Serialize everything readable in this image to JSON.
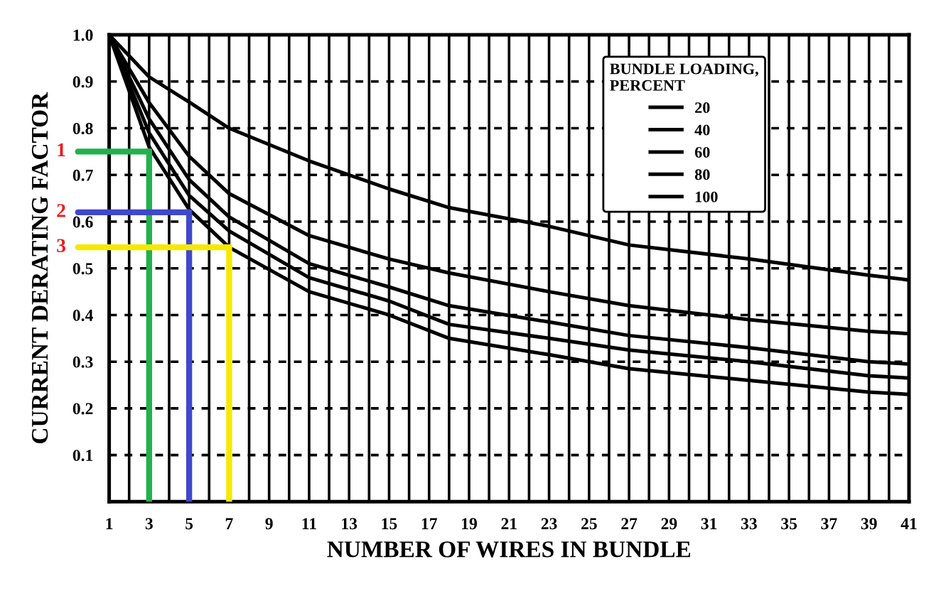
{
  "chart_data": {
    "type": "line",
    "xlabel": "NUMBER OF WIRES IN BUNDLE",
    "ylabel": "CURRENT DERATING FACTOR",
    "legend_title": "BUNDLE LOADING,\nPERCENT",
    "legend": "top right",
    "grid": true,
    "marker": "none",
    "line_style": "solid",
    "xlim": [
      1,
      41
    ],
    "ylim": [
      0,
      1
    ],
    "xticks": [
      1,
      {
        "value": 2,
        "label": null
      },
      3,
      {
        "value": 4,
        "label": null
      },
      5,
      {
        "value": 6,
        "label": null
      },
      7,
      {
        "value": 8,
        "label": null
      },
      9,
      {
        "value": 10,
        "label": null
      },
      11,
      {
        "value": 12,
        "label": null
      },
      13,
      {
        "value": 14,
        "label": null
      },
      15,
      {
        "value": 16,
        "label": null
      },
      17,
      {
        "value": 18,
        "label": null
      },
      19,
      {
        "value": 20,
        "label": null
      },
      21,
      {
        "value": 22,
        "label": null
      },
      23,
      {
        "value": 24,
        "label": null
      },
      25,
      {
        "value": 26,
        "label": null
      },
      27,
      {
        "value": 28,
        "label": null
      },
      29,
      {
        "value": 30,
        "label": null
      },
      31,
      {
        "value": 32,
        "label": null
      },
      33,
      {
        "value": 34,
        "label": null
      },
      35,
      {
        "value": 36,
        "label": null
      },
      37,
      {
        "value": 38,
        "label": null
      },
      39,
      {
        "value": 40,
        "label": null
      },
      41
    ],
    "yticks": [
      0.1,
      0.2,
      0.3,
      0.4,
      0.5,
      0.6,
      0.7,
      0.8,
      0.9,
      {
        "value": 1,
        "label": "1.0"
      }
    ],
    "x": [
      1,
      3,
      5,
      7,
      11,
      15,
      18,
      23,
      27,
      33,
      39,
      41
    ],
    "series": [
      {
        "name": "20",
        "color": "#000000",
        "values": [
          1.0,
          0.91,
          0.856,
          0.8,
          0.73,
          0.67,
          0.63,
          0.59,
          0.55,
          0.52,
          0.485,
          0.475
        ]
      },
      {
        "name": "40",
        "color": "#000000",
        "values": [
          1.0,
          0.855,
          0.74,
          0.66,
          0.57,
          0.52,
          0.49,
          0.45,
          0.42,
          0.39,
          0.365,
          0.36
        ]
      },
      {
        "name": "60",
        "color": "#000000",
        "values": [
          1.0,
          0.82,
          0.69,
          0.61,
          0.51,
          0.46,
          0.42,
          0.385,
          0.356,
          0.33,
          0.3,
          0.295
        ]
      },
      {
        "name": "80",
        "color": "#000000",
        "values": [
          1.0,
          0.79,
          0.656,
          0.58,
          0.48,
          0.43,
          0.38,
          0.35,
          0.325,
          0.3,
          0.27,
          0.265
        ]
      },
      {
        "name": "100",
        "color": "#000000",
        "values": [
          1.0,
          0.76,
          0.626,
          0.545,
          0.45,
          0.4,
          0.35,
          0.315,
          0.285,
          0.26,
          0.235,
          0.23
        ]
      },
      {
        "type": "line",
        "color": "#22b14c",
        "x": [
          3,
          3
        ],
        "values": [
          0.75,
          0
        ]
      },
      {
        "type": "line",
        "color": "#3f48cc",
        "x": [
          5,
          5
        ],
        "values": [
          0.62,
          0
        ]
      },
      {
        "type": "line",
        "color": "#f5e900",
        "x": [
          7,
          7
        ],
        "values": [
          0.545,
          0
        ]
      }
    ],
    "annotations": [
      "1",
      {
        "text": "2",
        "x": 5,
        "y": 0.62
      },
      {
        "text": "3",
        "x": 7,
        "y": 0.545
      }
    ]
  }
}
